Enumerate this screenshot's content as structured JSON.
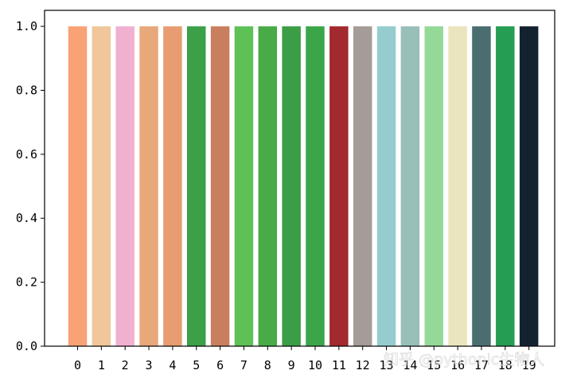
{
  "chart_data": {
    "type": "bar",
    "categories": [
      "0",
      "1",
      "2",
      "3",
      "4",
      "5",
      "6",
      "7",
      "8",
      "9",
      "10",
      "11",
      "12",
      "13",
      "14",
      "15",
      "16",
      "17",
      "18",
      "19"
    ],
    "values": [
      1,
      1,
      1,
      1,
      1,
      1,
      1,
      1,
      1,
      1,
      1,
      1,
      1,
      1,
      1,
      1,
      1,
      1,
      1,
      1
    ],
    "colors": [
      "#F9A275",
      "#F0C69A",
      "#F0B1D1",
      "#E8A87A",
      "#E89C72",
      "#3BA048",
      "#C97F5D",
      "#5DC156",
      "#49AB48",
      "#3C9D47",
      "#3AA649",
      "#A2292E",
      "#A59C97",
      "#95CDCE",
      "#98BFB9",
      "#94D997",
      "#EBE5BD",
      "#4A6E6F",
      "#259E54",
      "#142230"
    ],
    "ylim": [
      0,
      1.05
    ],
    "yticks": [
      0.0,
      0.2,
      0.4,
      0.6,
      0.8,
      1.0
    ],
    "ytick_labels": [
      "0.0",
      "0.2",
      "0.4",
      "0.6",
      "0.8",
      "1.0"
    ],
    "title": "",
    "xlabel": "",
    "ylabel": "",
    "grid": false,
    "legend": "none"
  },
  "watermark": "知乎 @pythonic生物人"
}
